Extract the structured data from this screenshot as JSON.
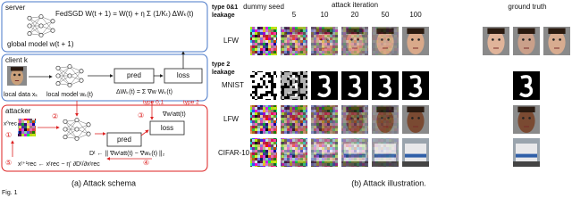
{
  "panel_a": {
    "server": {
      "label": "server",
      "formula": "FedSGD  W(t + 1) = W(t) + η Σ (1/Kₜ) ΔWₖ(t)",
      "model": "global model w(t + 1)"
    },
    "client": {
      "label": "client k",
      "data": "local data xₖ",
      "model": "local model wₖ(t)",
      "pred": "pred",
      "loss": "loss",
      "update": "ΔWₖ(t) = Σ ∇w Wₖ(t)",
      "type01": "type 0,1",
      "type2": "type 2"
    },
    "attacker": {
      "label": "attacker",
      "seed": "x⁰rec",
      "step1": "①",
      "step2": "②",
      "step3": "③",
      "step4": "④",
      "step5": "⑤",
      "pred": "pred",
      "loss": "loss",
      "grad": "∇wᵗatt(t)",
      "distance": "Dᵗ ← || ∇wᵗatt(t) − ∇wₖ(t) ||₂",
      "update": "xᵗ⁺¹rec ← xᵗrec − η' ∂Dᵗ/∂xᵗrec"
    },
    "caption": "(a) Attack schema"
  },
  "panel_b": {
    "header": {
      "type01_1": "type 0&1",
      "type01_2": "leakage",
      "dummy": "dummy seed",
      "iteration": "attack iteration",
      "iterations": [
        "5",
        "10",
        "20",
        "50",
        "100"
      ],
      "truth": "ground truth"
    },
    "rows": {
      "lfw1": "LFW",
      "type2_1": "type 2",
      "type2_2": "leakage",
      "mnist": "MNIST",
      "lfw2": "LFW",
      "cifar": "CIFAR-10"
    },
    "caption": "(b) Attack illustration."
  },
  "figure": "Fig. 1"
}
